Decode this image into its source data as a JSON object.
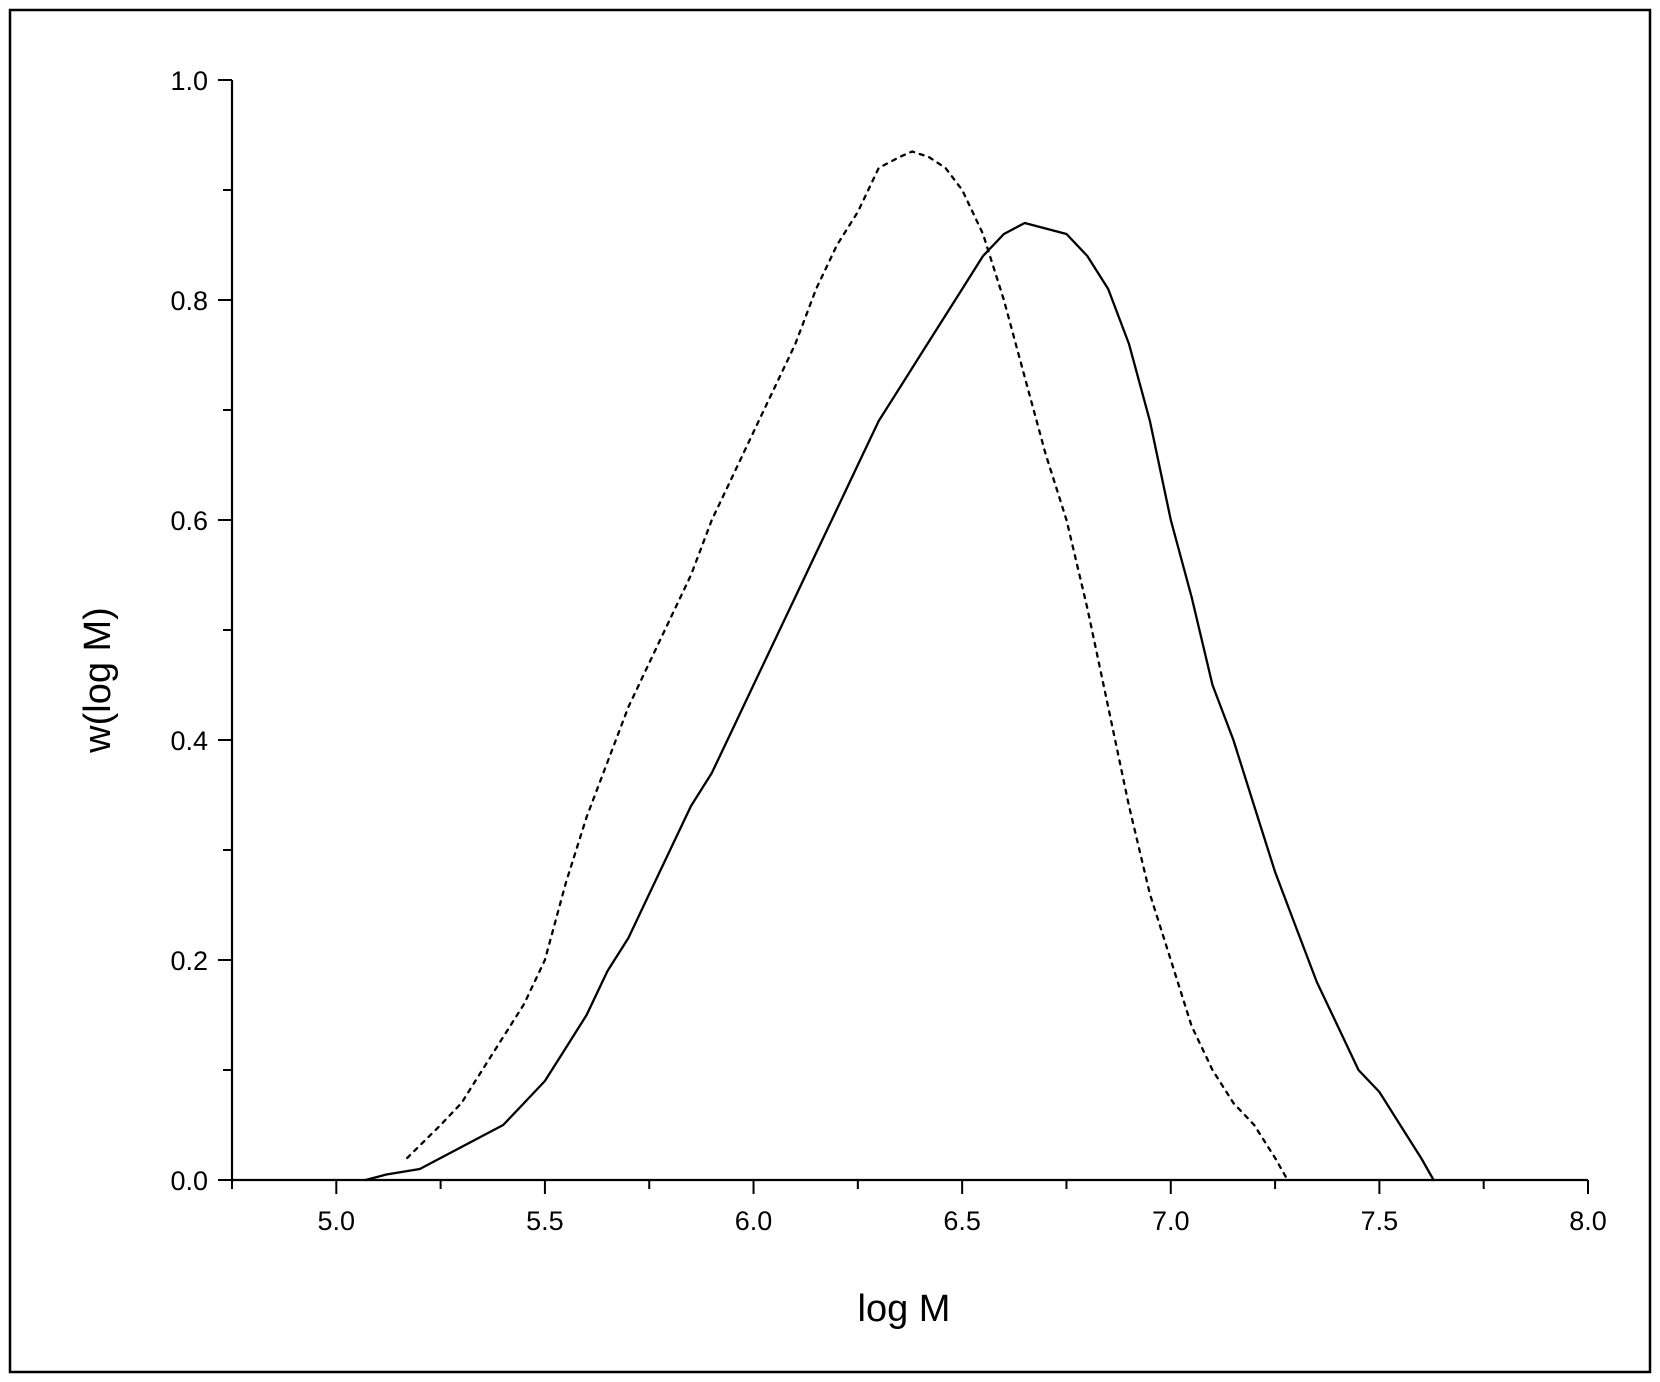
{
  "chart_data": {
    "type": "line",
    "title": "",
    "xlabel": "log M",
    "ylabel": "w(log M)",
    "xlim": [
      4.75,
      8.0
    ],
    "ylim": [
      0.0,
      1.0
    ],
    "x_major_ticks": [
      5.0,
      5.5,
      6.0,
      6.5,
      7.0,
      7.5,
      8.0
    ],
    "x_tick_labels": [
      "5.0",
      "5.5",
      "6.0",
      "6.5",
      "7.0",
      "7.5",
      "8.0"
    ],
    "x_minor_ticks": [
      4.75,
      5.25,
      5.75,
      6.25,
      6.75,
      7.25,
      7.75
    ],
    "y_major_ticks": [
      0.0,
      0.2,
      0.4,
      0.6,
      0.8,
      1.0
    ],
    "y_tick_labels": [
      "0.0",
      "0.2",
      "0.4",
      "0.6",
      "0.8",
      "1.0"
    ],
    "y_minor_ticks": [
      0.1,
      0.3,
      0.5,
      0.7,
      0.9
    ],
    "grid": false,
    "legend": "none",
    "series": [
      {
        "line_style": "dotted",
        "color": "#000000",
        "x": [
          5.17,
          5.25,
          5.3,
          5.35,
          5.4,
          5.45,
          5.5,
          5.55,
          5.6,
          5.65,
          5.7,
          5.75,
          5.8,
          5.85,
          5.9,
          5.95,
          6.0,
          6.05,
          6.1,
          6.15,
          6.2,
          6.25,
          6.3,
          6.35,
          6.38,
          6.42,
          6.46,
          6.5,
          6.55,
          6.6,
          6.65,
          6.7,
          6.75,
          6.8,
          6.85,
          6.9,
          6.95,
          7.0,
          7.05,
          7.1,
          7.15,
          7.2,
          7.25,
          7.28
        ],
        "y": [
          0.02,
          0.05,
          0.07,
          0.1,
          0.13,
          0.16,
          0.2,
          0.27,
          0.33,
          0.38,
          0.43,
          0.47,
          0.51,
          0.55,
          0.6,
          0.64,
          0.68,
          0.72,
          0.76,
          0.81,
          0.85,
          0.88,
          0.92,
          0.93,
          0.935,
          0.93,
          0.92,
          0.9,
          0.86,
          0.8,
          0.73,
          0.66,
          0.6,
          0.52,
          0.43,
          0.34,
          0.26,
          0.2,
          0.14,
          0.1,
          0.07,
          0.05,
          0.02,
          0.0
        ]
      },
      {
        "line_style": "solid",
        "color": "#000000",
        "x": [
          5.07,
          5.12,
          5.2,
          5.25,
          5.3,
          5.35,
          5.4,
          5.45,
          5.5,
          5.55,
          5.6,
          5.65,
          5.7,
          5.75,
          5.8,
          5.85,
          5.9,
          5.95,
          6.0,
          6.05,
          6.1,
          6.15,
          6.2,
          6.25,
          6.3,
          6.35,
          6.4,
          6.45,
          6.5,
          6.55,
          6.6,
          6.65,
          6.7,
          6.75,
          6.8,
          6.85,
          6.9,
          6.95,
          7.0,
          7.05,
          7.1,
          7.15,
          7.2,
          7.25,
          7.3,
          7.35,
          7.4,
          7.45,
          7.5,
          7.55,
          7.6,
          7.63
        ],
        "y": [
          0.0,
          0.005,
          0.01,
          0.02,
          0.03,
          0.04,
          0.05,
          0.07,
          0.09,
          0.12,
          0.15,
          0.19,
          0.22,
          0.26,
          0.3,
          0.34,
          0.37,
          0.41,
          0.45,
          0.49,
          0.53,
          0.57,
          0.61,
          0.65,
          0.69,
          0.72,
          0.75,
          0.78,
          0.81,
          0.84,
          0.86,
          0.87,
          0.865,
          0.86,
          0.84,
          0.81,
          0.76,
          0.69,
          0.6,
          0.53,
          0.45,
          0.4,
          0.34,
          0.28,
          0.23,
          0.18,
          0.14,
          0.1,
          0.08,
          0.05,
          0.02,
          0.0
        ]
      }
    ]
  }
}
